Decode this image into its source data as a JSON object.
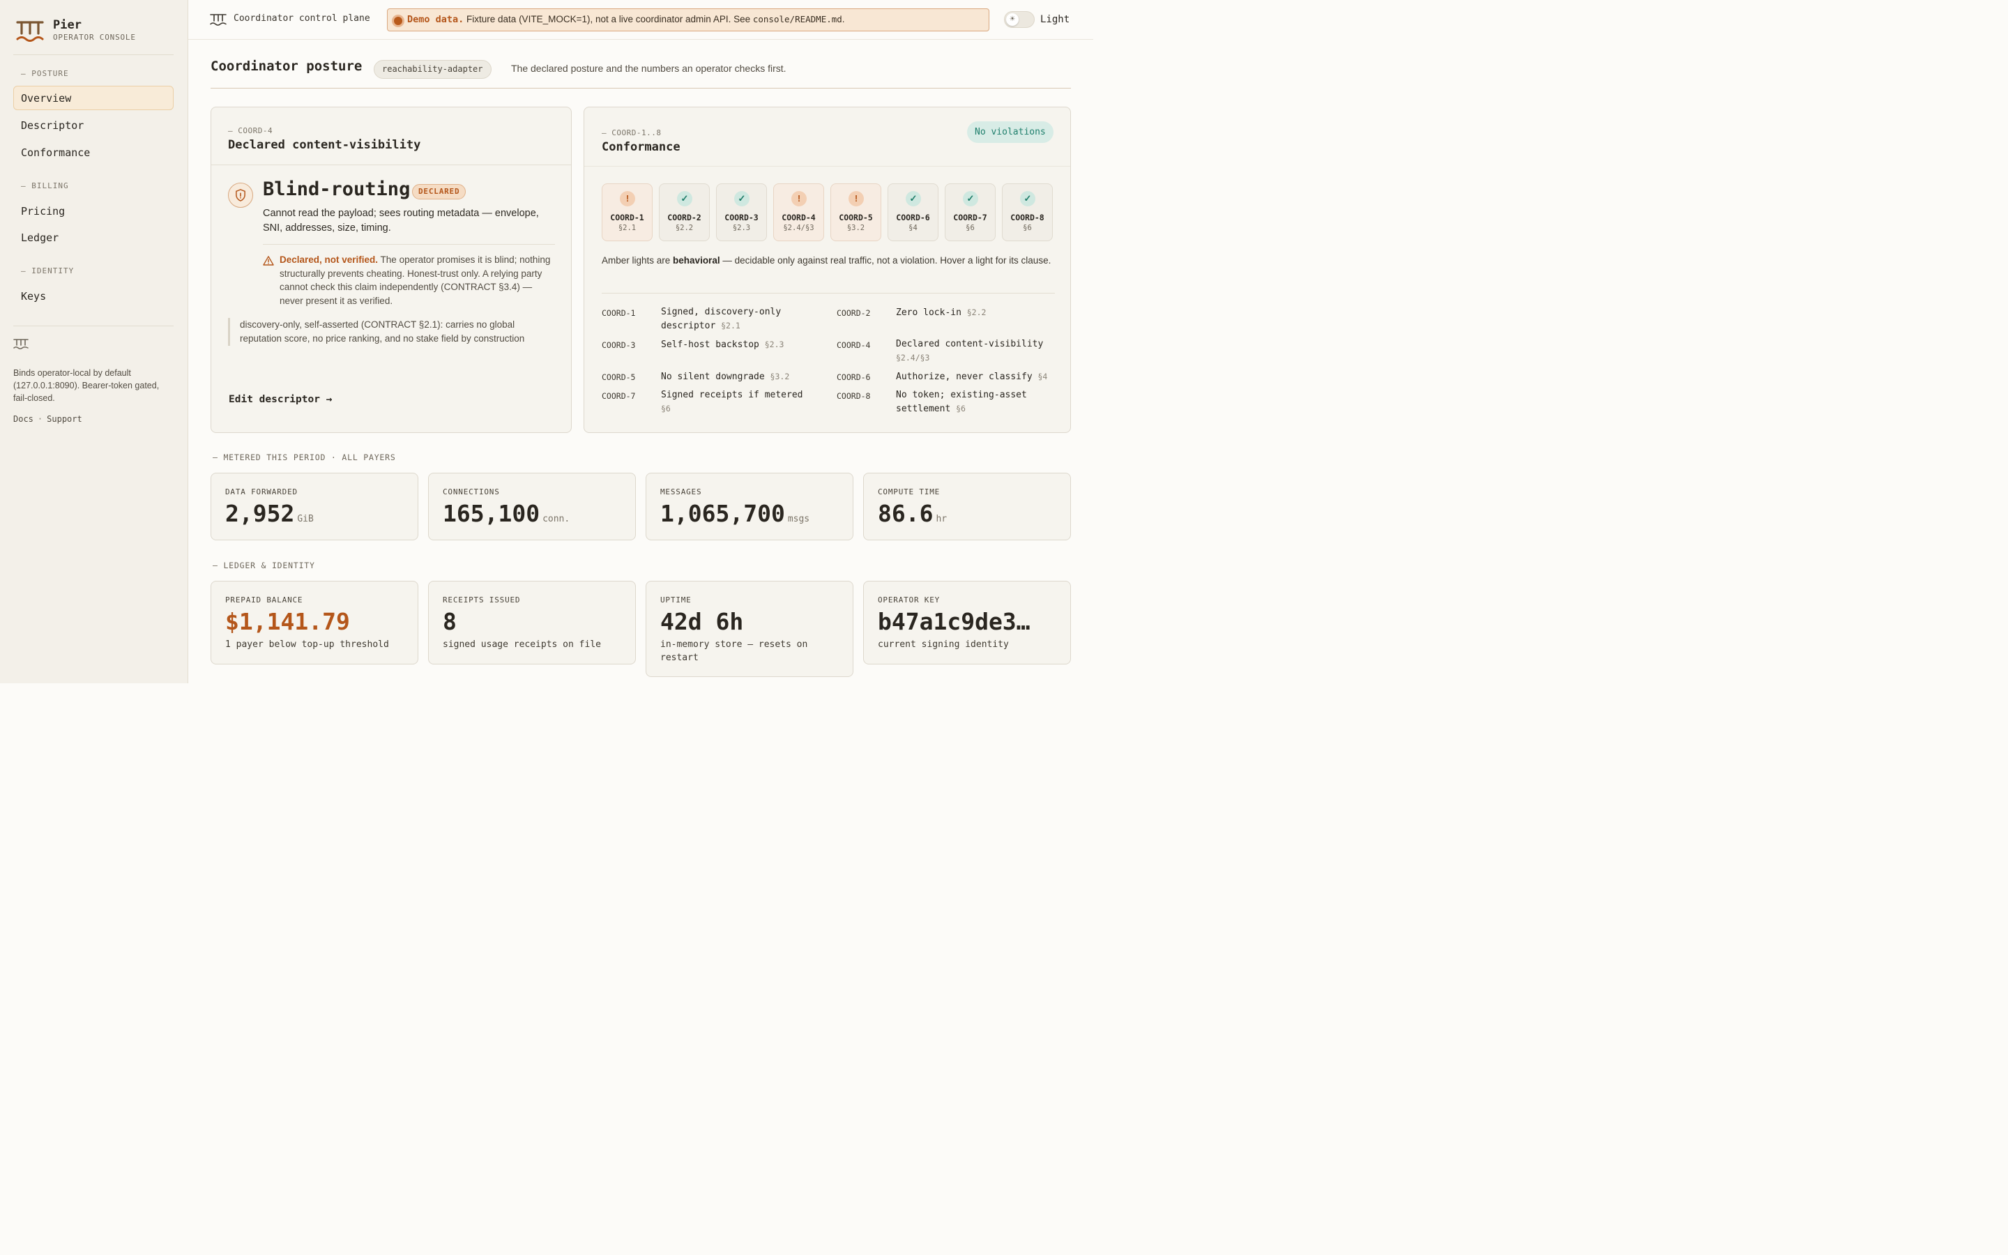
{
  "app": {
    "name": "Pier",
    "subtitle": "OPERATOR CONSOLE",
    "accent_color": "#b4561a",
    "ok_color": "#1e7d69"
  },
  "sidebar": {
    "sections": [
      {
        "label": "— POSTURE"
      },
      {
        "label": "— BILLING"
      },
      {
        "label": "— IDENTITY"
      }
    ],
    "items": [
      {
        "label": "Overview",
        "active": true
      },
      {
        "label": "Descriptor"
      },
      {
        "label": "Conformance"
      },
      {
        "label": "Pricing"
      },
      {
        "label": "Ledger"
      },
      {
        "label": "Keys"
      }
    ],
    "footer_text": "Binds operator-local by default (127.0.0.1:8090). Bearer-token gated, fail-closed.",
    "links": {
      "docs": "Docs",
      "separator": "·",
      "support": "Support"
    }
  },
  "topbar": {
    "title": "Coordinator control plane",
    "banner": {
      "strong": "Demo data.",
      "text_before": " Fixture data (VITE_MOCK=1), not a live coordinator admin API. See ",
      "code": "console/README.md",
      "text_after": "."
    },
    "theme_label": "Light"
  },
  "page": {
    "title": "Coordinator posture",
    "chip": "reachability-adapter",
    "subtitle": "The declared posture and the numbers an operator checks first."
  },
  "visibility_card": {
    "eyebrow": "— COORD-4",
    "title": "Declared content-visibility",
    "mode": "Blind-routing",
    "badge": "DECLARED",
    "description": "Cannot read the payload; sees routing metadata — envelope, SNI, addresses, size, timing.",
    "warning_strong": "Declared, not verified.",
    "warning_text": " The operator promises it is blind; nothing structurally prevents cheating. Honest-trust only. A relying party cannot check this claim independently (CONTRACT §3.4) — never present it as verified.",
    "quote": "discovery-only, self-asserted (CONTRACT §2.1): carries no global reputation score, no price ranking, and no stake field by construction",
    "edit_link": "Edit descriptor →"
  },
  "conformance_card": {
    "eyebrow": "— COORD-1..8",
    "title": "Conformance",
    "status": "No violations",
    "lights": [
      {
        "name": "COORD-1",
        "clause": "§2.1",
        "state": "amber",
        "icon": "exclamation-icon",
        "glyph": "!"
      },
      {
        "name": "COORD-2",
        "clause": "§2.2",
        "state": "ok",
        "icon": "check-icon",
        "glyph": "✓"
      },
      {
        "name": "COORD-3",
        "clause": "§2.3",
        "state": "ok",
        "icon": "check-icon",
        "glyph": "✓"
      },
      {
        "name": "COORD-4",
        "clause": "§2.4/§3",
        "state": "amber",
        "icon": "exclamation-icon",
        "glyph": "!"
      },
      {
        "name": "COORD-5",
        "clause": "§3.2",
        "state": "amber",
        "icon": "exclamation-icon",
        "glyph": "!"
      },
      {
        "name": "COORD-6",
        "clause": "§4",
        "state": "ok",
        "icon": "check-icon",
        "glyph": "✓"
      },
      {
        "name": "COORD-7",
        "clause": "§6",
        "state": "ok",
        "icon": "check-icon",
        "glyph": "✓"
      },
      {
        "name": "COORD-8",
        "clause": "§6",
        "state": "ok",
        "icon": "check-icon",
        "glyph": "✓"
      }
    ],
    "note_before": "Amber lights are ",
    "note_bold": "behavioral",
    "note_after": " — decidable only against real traffic, not a violation. Hover a light for its clause.",
    "rules": [
      {
        "id": "COORD-1",
        "text": "Signed, discovery-only descriptor",
        "clause": "§2.1"
      },
      {
        "id": "COORD-2",
        "text": "Zero lock-in",
        "clause": "§2.2"
      },
      {
        "id": "COORD-3",
        "text": "Self-host backstop",
        "clause": "§2.3"
      },
      {
        "id": "COORD-4",
        "text": "Declared content-visibility",
        "clause": "§2.4/§3"
      },
      {
        "id": "COORD-5",
        "text": "No silent downgrade",
        "clause": "§3.2"
      },
      {
        "id": "COORD-6",
        "text": "Authorize, never classify",
        "clause": "§4"
      },
      {
        "id": "COORD-7",
        "text": "Signed receipts if metered",
        "clause": "§6"
      },
      {
        "id": "COORD-8",
        "text": "No token; existing-asset settlement",
        "clause": "§6"
      }
    ]
  },
  "metered": {
    "label": "— METERED THIS PERIOD · ALL PAYERS",
    "stats": [
      {
        "label": "DATA FORWARDED",
        "value": "2,952",
        "unit": "GiB"
      },
      {
        "label": "CONNECTIONS",
        "value": "165,100",
        "unit": "conn."
      },
      {
        "label": "MESSAGES",
        "value": "1,065,700",
        "unit": "msgs"
      },
      {
        "label": "COMPUTE TIME",
        "value": "86.6",
        "unit": "hr"
      }
    ]
  },
  "ledger": {
    "label": "— LEDGER & IDENTITY",
    "stats": [
      {
        "label": "PREPAID BALANCE",
        "value": "$1,141.79",
        "sub": "1 payer below top-up threshold"
      },
      {
        "label": "RECEIPTS ISSUED",
        "value": "8",
        "sub": "signed usage receipts on file"
      },
      {
        "label": "UPTIME",
        "value": "42d 6h",
        "sub": "in-memory store — resets on restart"
      },
      {
        "label": "OPERATOR KEY",
        "value": "b47a1c9de3…",
        "sub": "current signing identity"
      }
    ]
  }
}
